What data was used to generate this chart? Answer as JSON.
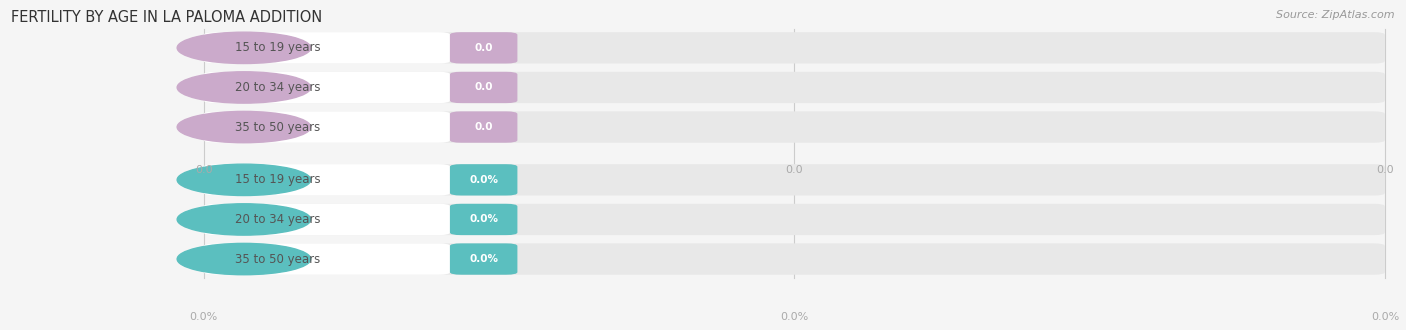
{
  "title": "FERTILITY BY AGE IN LA PALOMA ADDITION",
  "source": "Source: ZipAtlas.com",
  "sections": [
    {
      "categories": [
        "15 to 19 years",
        "20 to 34 years",
        "35 to 50 years"
      ],
      "values": [
        0.0,
        0.0,
        0.0
      ],
      "bar_color": "#cbaacb",
      "circle_color": "#cbaacb",
      "unit": "",
      "tick_fmt": "0.0"
    },
    {
      "categories": [
        "15 to 19 years",
        "20 to 34 years",
        "35 to 50 years"
      ],
      "values": [
        0.0,
        0.0,
        0.0
      ],
      "bar_color": "#5bbfbf",
      "circle_color": "#5bbfbf",
      "unit": "%",
      "tick_fmt": "0.0%"
    }
  ],
  "background_color": "#f5f5f5",
  "bar_bg_color": "#e8e8e8",
  "label_text_color": "#555555",
  "value_text_color": "#ffffff",
  "tick_label_color": "#aaaaaa",
  "title_color": "#333333",
  "source_color": "#999999",
  "grid_color": "#cccccc",
  "fig_width": 14.06,
  "fig_height": 3.3,
  "dpi": 100
}
